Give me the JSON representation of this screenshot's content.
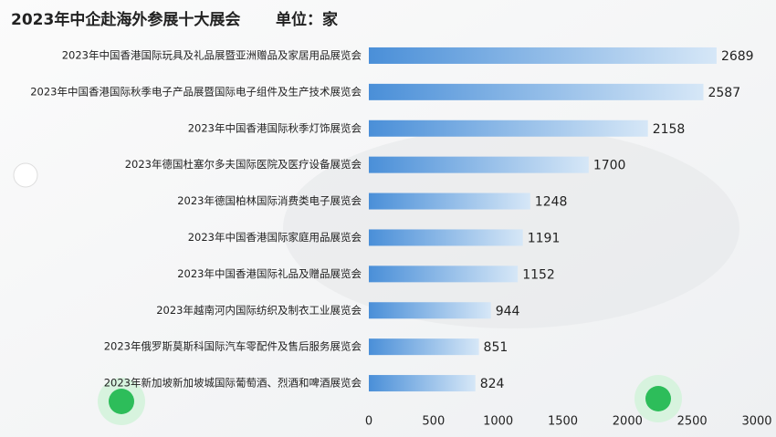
{
  "chart_data": {
    "type": "bar",
    "orientation": "horizontal",
    "title": "2023年中企赴海外参展十大展会",
    "subtitle": "单位：家",
    "categories": [
      "2023年中国香港国际玩具及礼品展暨亚洲赠品及家居用品展览会",
      "2023年中国香港国际秋季电子产品展暨国际电子组件及生产技术展览会",
      "2023年中国香港国际秋季灯饰展览会",
      "2023年德国杜塞尔多夫国际医院及医疗设备展览会",
      "2023年德国柏林国际消费类电子展览会",
      "2023年中国香港国际家庭用品展览会",
      "2023年中国香港国际礼品及赠品展览会",
      "2023年越南河内国际纺织及制衣工业展览会",
      "2023年俄罗斯莫斯科国际汽车零配件及售后服务展览会",
      "2023年新加坡新加坡城国际葡萄酒、烈酒和啤酒展览会"
    ],
    "values": [
      2689,
      2587,
      2158,
      1700,
      1248,
      1191,
      1152,
      944,
      851,
      824
    ],
    "color": "#4a8fd8",
    "xlim": [
      0,
      3000
    ],
    "xticks": [
      0,
      500,
      1000,
      1500,
      2000,
      2500,
      3000
    ],
    "grid": false
  }
}
